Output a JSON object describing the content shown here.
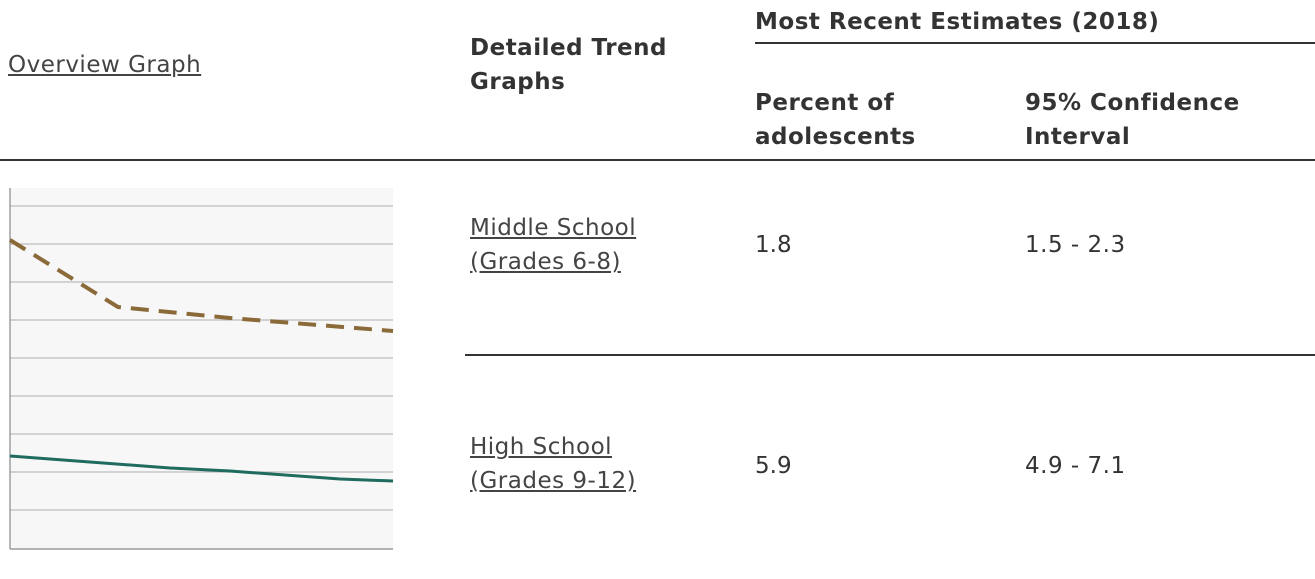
{
  "header": {
    "overview": "Overview Graph",
    "detailed": "Detailed Trend Graphs",
    "group": "Most Recent Estimates (2018)",
    "percent": "Percent of adolescents",
    "ci": "95% Confidence Interval"
  },
  "rows": [
    {
      "label": "Middle School (Grades 6-8)",
      "percent": 1.8,
      "ci": "1.5 - 2.3"
    },
    {
      "label": "High School (Grades 9-12)",
      "percent": 5.9,
      "ci": "4.9 - 7.1"
    }
  ]
}
